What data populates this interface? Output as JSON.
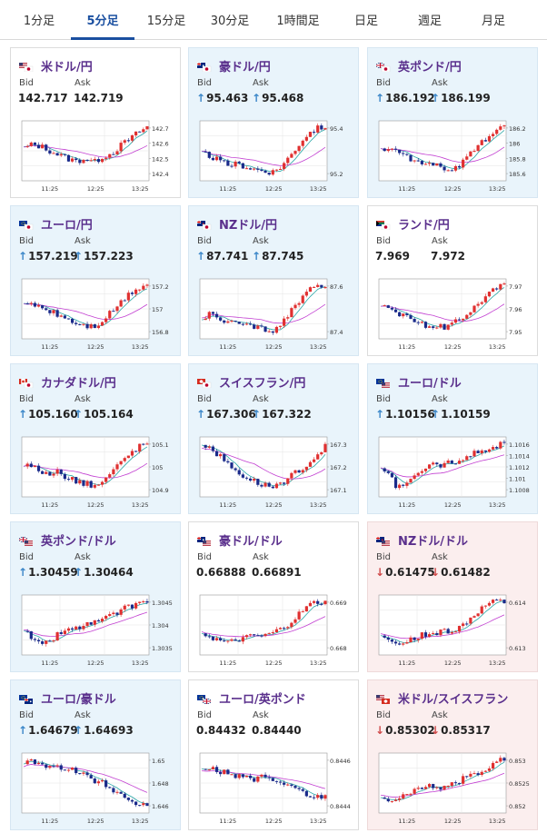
{
  "tabs": [
    "1分足",
    "5分足",
    "15分足",
    "30分足",
    "1時間足",
    "日足",
    "週足",
    "月足"
  ],
  "active_tab": 1,
  "labels": {
    "bid": "Bid",
    "ask": "Ask"
  },
  "x_ticks": [
    "11:25",
    "12:25",
    "13:25"
  ],
  "cards": [
    {
      "pair": "米ドル/円",
      "flag": "us-jp",
      "theme": "plain",
      "dir": "",
      "bid": "142.717",
      "ask": "142.719",
      "y_ticks": [
        "142.7",
        "142.6",
        "142.5",
        "142.4"
      ],
      "chart_data": {
        "type": "candlestick",
        "trend": [
          0.55,
          0.62,
          0.58,
          0.5,
          0.42,
          0.35,
          0.3,
          0.36,
          0.28,
          0.4,
          0.45,
          0.6,
          0.72,
          0.85,
          0.95
        ]
      }
    },
    {
      "pair": "豪ドル/円",
      "flag": "au-jp",
      "theme": "up",
      "dir": "u",
      "bid": "95.463",
      "ask": "95.468",
      "y_ticks": [
        "95.4",
        "95.2"
      ],
      "chart_data": {
        "type": "candlestick",
        "trend": [
          0.45,
          0.4,
          0.3,
          0.22,
          0.25,
          0.2,
          0.15,
          0.12,
          0.1,
          0.2,
          0.4,
          0.62,
          0.82,
          0.92,
          0.96
        ]
      }
    },
    {
      "pair": "英ポンド/円",
      "flag": "gb-jp",
      "theme": "up",
      "dir": "u",
      "bid": "186.192",
      "ask": "186.199",
      "y_ticks": [
        "186.2",
        "186",
        "185.8",
        "185.6"
      ],
      "chart_data": {
        "type": "candlestick",
        "trend": [
          0.5,
          0.55,
          0.45,
          0.38,
          0.3,
          0.26,
          0.22,
          0.18,
          0.12,
          0.22,
          0.4,
          0.6,
          0.75,
          0.88,
          0.95
        ]
      }
    },
    {
      "pair": "ユーロ/円",
      "flag": "eu-jp",
      "theme": "up",
      "dir": "u",
      "bid": "157.219",
      "ask": "157.223",
      "y_ticks": [
        "157.2",
        "157",
        "156.8"
      ],
      "chart_data": {
        "type": "candlestick",
        "trend": [
          0.55,
          0.6,
          0.52,
          0.45,
          0.38,
          0.3,
          0.22,
          0.18,
          0.16,
          0.28,
          0.45,
          0.62,
          0.78,
          0.9,
          0.96
        ]
      }
    },
    {
      "pair": "NZドル/円",
      "flag": "nz-jp",
      "theme": "up",
      "dir": "u",
      "bid": "87.741",
      "ask": "87.745",
      "y_ticks": [
        "87.6",
        "87.4"
      ],
      "chart_data": {
        "type": "candlestick",
        "trend": [
          0.35,
          0.4,
          0.3,
          0.25,
          0.22,
          0.18,
          0.15,
          0.12,
          0.1,
          0.2,
          0.45,
          0.65,
          0.82,
          0.92,
          0.96
        ]
      }
    },
    {
      "pair": "ランド/円",
      "flag": "za-jp",
      "theme": "plain",
      "dir": "",
      "bid": "7.969",
      "ask": "7.972",
      "y_ticks": [
        "7.97",
        "7.96",
        "7.95"
      ],
      "chart_data": {
        "type": "candlestick",
        "trend": [
          0.6,
          0.55,
          0.4,
          0.32,
          0.25,
          0.2,
          0.18,
          0.15,
          0.2,
          0.3,
          0.45,
          0.6,
          0.75,
          0.88,
          0.96
        ]
      }
    },
    {
      "pair": "カナダドル/円",
      "flag": "ca-jp",
      "theme": "up",
      "dir": "u",
      "bid": "105.160",
      "ask": "105.164",
      "y_ticks": [
        "105.1",
        "105",
        "104.9"
      ],
      "chart_data": {
        "type": "candlestick",
        "trend": [
          0.55,
          0.5,
          0.42,
          0.35,
          0.4,
          0.3,
          0.24,
          0.18,
          0.15,
          0.22,
          0.42,
          0.58,
          0.75,
          0.88,
          0.96
        ]
      }
    },
    {
      "pair": "スイスフラン/円",
      "flag": "ch-jp",
      "theme": "up",
      "dir": "u",
      "bid": "167.306",
      "ask": "167.322",
      "y_ticks": [
        "167.3",
        "167.2",
        "167.1"
      ],
      "chart_data": {
        "type": "candlestick",
        "trend": [
          0.95,
          0.85,
          0.7,
          0.55,
          0.4,
          0.3,
          0.22,
          0.15,
          0.12,
          0.2,
          0.3,
          0.45,
          0.55,
          0.72,
          0.88
        ]
      }
    },
    {
      "pair": "ユーロ/ドル",
      "flag": "eu-us",
      "theme": "up",
      "dir": "u",
      "bid": "1.10156",
      "ask": "1.10159",
      "y_ticks": [
        "1.1016",
        "1.1014",
        "1.1012",
        "1.101",
        "1.1008"
      ],
      "chart_data": {
        "type": "candlestick",
        "trend": [
          0.5,
          0.3,
          0.1,
          0.25,
          0.4,
          0.45,
          0.55,
          0.5,
          0.62,
          0.6,
          0.7,
          0.78,
          0.85,
          0.9,
          0.95
        ]
      }
    },
    {
      "pair": "英ポンド/ドル",
      "flag": "gb-us",
      "theme": "up",
      "dir": "u",
      "bid": "1.30459",
      "ask": "1.30464",
      "y_ticks": [
        "1.3045",
        "1.304",
        "1.3035"
      ],
      "chart_data": {
        "type": "candlestick",
        "trend": [
          0.4,
          0.25,
          0.1,
          0.2,
          0.35,
          0.4,
          0.45,
          0.5,
          0.55,
          0.6,
          0.68,
          0.78,
          0.85,
          0.92,
          0.96
        ]
      }
    },
    {
      "pair": "豪ドル/ドル",
      "flag": "au-us",
      "theme": "plain",
      "dir": "",
      "bid": "0.66888",
      "ask": "0.66891",
      "y_ticks": [
        "0.669",
        "0.668"
      ],
      "chart_data": {
        "type": "candlestick",
        "trend": [
          0.35,
          0.28,
          0.2,
          0.15,
          0.22,
          0.25,
          0.3,
          0.28,
          0.35,
          0.42,
          0.55,
          0.7,
          0.85,
          0.94,
          0.92
        ]
      }
    },
    {
      "pair": "NZドル/ドル",
      "flag": "nz-us",
      "theme": "down",
      "dir": "d",
      "bid": "0.61475",
      "ask": "0.61482",
      "y_ticks": [
        "0.614",
        "0.613"
      ],
      "chart_data": {
        "type": "candlestick",
        "trend": [
          0.3,
          0.18,
          0.12,
          0.2,
          0.28,
          0.32,
          0.35,
          0.4,
          0.38,
          0.45,
          0.6,
          0.75,
          0.88,
          0.95,
          0.92
        ]
      }
    },
    {
      "pair": "ユーロ/豪ドル",
      "flag": "eu-au",
      "theme": "up",
      "dir": "u",
      "bid": "1.64679",
      "ask": "1.64693",
      "y_ticks": [
        "1.65",
        "1.648",
        "1.646"
      ],
      "chart_data": {
        "type": "candlestick",
        "trend": [
          0.85,
          0.9,
          0.88,
          0.8,
          0.82,
          0.78,
          0.7,
          0.65,
          0.55,
          0.5,
          0.4,
          0.3,
          0.18,
          0.1,
          0.12
        ]
      }
    },
    {
      "pair": "ユーロ/英ポンド",
      "flag": "eu-gb",
      "theme": "plain",
      "dir": "",
      "bid": "0.84432",
      "ask": "0.84440",
      "y_ticks": [
        "0.8446",
        "0.8444"
      ],
      "chart_data": {
        "type": "candlestick",
        "trend": [
          0.75,
          0.8,
          0.7,
          0.72,
          0.6,
          0.65,
          0.55,
          0.62,
          0.5,
          0.45,
          0.48,
          0.35,
          0.28,
          0.22,
          0.25
        ]
      }
    },
    {
      "pair": "米ドル/スイスフラン",
      "flag": "us-ch",
      "theme": "down",
      "dir": "d",
      "bid": "0.85302",
      "ask": "0.85317",
      "y_ticks": [
        "0.853",
        "0.8525",
        "0.852"
      ],
      "chart_data": {
        "type": "candlestick",
        "trend": [
          0.2,
          0.15,
          0.25,
          0.3,
          0.35,
          0.4,
          0.45,
          0.42,
          0.5,
          0.55,
          0.62,
          0.7,
          0.8,
          0.9,
          0.95
        ]
      }
    }
  ]
}
